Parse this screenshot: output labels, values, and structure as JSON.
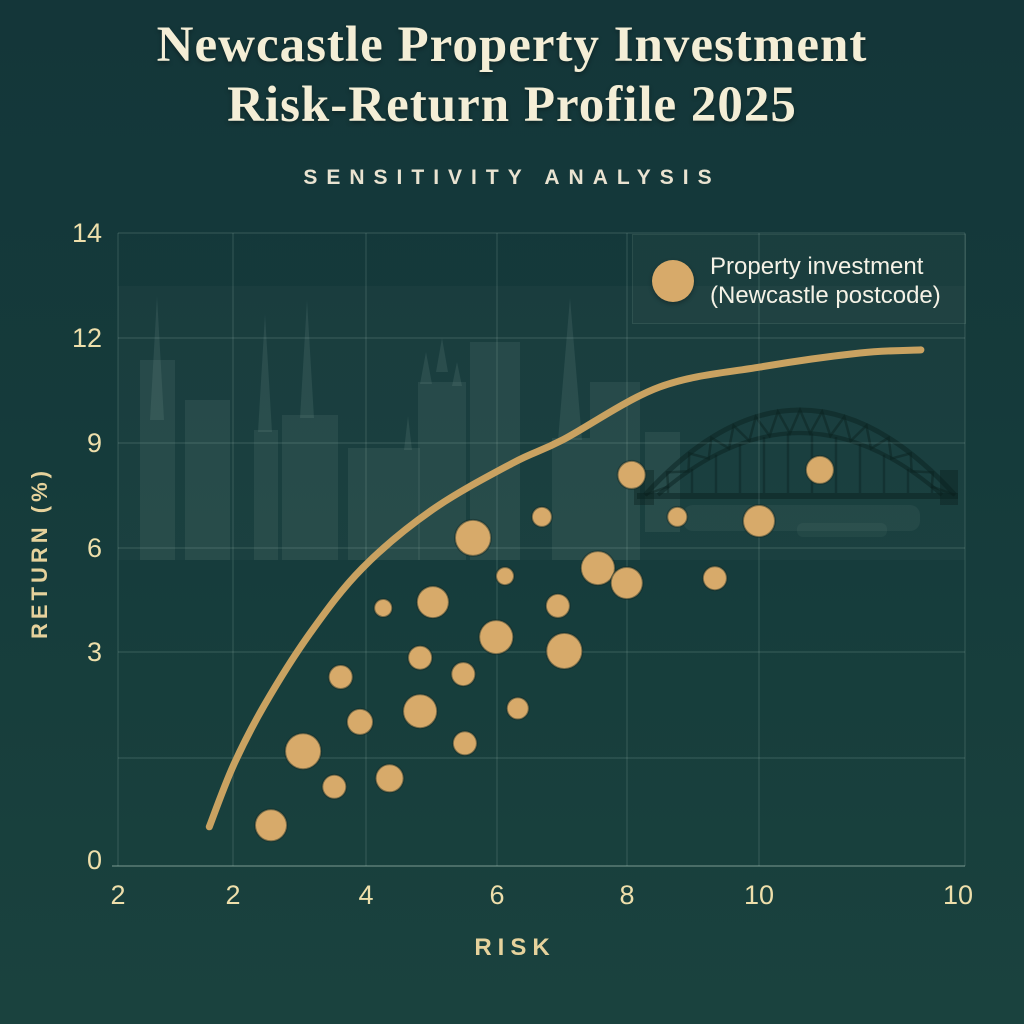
{
  "title": {
    "line1": "Newcastle Property Investment",
    "line2": "Risk-Return Profile 2025"
  },
  "subtitle": "SENSITIVITY ANALYSIS",
  "legend": {
    "label_line1": "Property investment",
    "label_line2": "(Newcastle postcode)"
  },
  "colors": {
    "background": "#15393a",
    "title_text": "#f4eed6",
    "tick_text": "#eedfab",
    "legend_text": "#f5f2e6",
    "bubble": "#d7aa6a",
    "curve": "#c9a261",
    "grid": "#bad6c9",
    "skyline": "#aecbbd",
    "bridge": "#0a211f"
  },
  "chart_data": {
    "type": "scatter",
    "title": "Newcastle Property Investment Risk-Return Profile 2025 — Sensitivity Analysis",
    "xlabel": "RISK",
    "ylabel": "RETURN (%)",
    "x_tick_labels": [
      "2",
      "2",
      "4",
      "6",
      "8",
      "10",
      "10"
    ],
    "y_tick_labels": [
      "14",
      "12",
      "9",
      "6",
      "3",
      "0"
    ],
    "xlim": [
      2,
      12.5
    ],
    "ylim": [
      0,
      14
    ],
    "grid": "on",
    "legend_position": "top-right",
    "series": [
      {
        "name": "Property investment (Newcastle postcode)",
        "points": [
          {
            "risk": 6.43,
            "return": 6.29,
            "r": 18
          },
          {
            "risk": 6.83,
            "return": 5.19,
            "r": 9
          },
          {
            "risk": 7.99,
            "return": 5.42,
            "r": 17
          },
          {
            "risk": 7.29,
            "return": 6.89,
            "r": 10
          },
          {
            "risk": 5.93,
            "return": 4.44,
            "r": 16
          },
          {
            "risk": 5.31,
            "return": 4.27,
            "r": 9
          },
          {
            "risk": 7.49,
            "return": 4.33,
            "r": 12
          },
          {
            "risk": 6.72,
            "return": 3.43,
            "r": 17
          },
          {
            "risk": 7.57,
            "return": 3.03,
            "r": 18
          },
          {
            "risk": 5.77,
            "return": 2.92,
            "r": 12
          },
          {
            "risk": 4.78,
            "return": 2.65,
            "r": 12
          },
          {
            "risk": 6.31,
            "return": 2.69,
            "r": 12
          },
          {
            "risk": 5.77,
            "return": 2.17,
            "r": 17
          },
          {
            "risk": 6.99,
            "return": 2.21,
            "r": 11
          },
          {
            "risk": 5.02,
            "return": 2.02,
            "r": 13
          },
          {
            "risk": 4.31,
            "return": 1.61,
            "r": 18
          },
          {
            "risk": 6.33,
            "return": 1.72,
            "r": 12
          },
          {
            "risk": 5.39,
            "return": 1.23,
            "r": 14
          },
          {
            "risk": 4.7,
            "return": 1.11,
            "r": 12
          },
          {
            "risk": 3.91,
            "return": 0.57,
            "r": 16
          },
          {
            "risk": 8.41,
            "return": 8.09,
            "r": 14
          },
          {
            "risk": 10.76,
            "return": 8.23,
            "r": 14
          },
          {
            "risk": 8.98,
            "return": 6.89,
            "r": 10
          },
          {
            "risk": 10.0,
            "return": 6.77,
            "r": 16
          },
          {
            "risk": 8.35,
            "return": 4.99,
            "r": 16
          },
          {
            "risk": 9.45,
            "return": 5.13,
            "r": 12
          }
        ]
      }
    ],
    "frontier_curve": {
      "name": "efficient-frontier",
      "points": [
        {
          "risk": 3.14,
          "return": 0.55
        },
        {
          "risk": 3.44,
          "return": 1.41
        },
        {
          "risk": 3.83,
          "return": 2.26
        },
        {
          "risk": 4.4,
          "return": 3.55
        },
        {
          "risk": 5.05,
          "return": 5.42
        },
        {
          "risk": 5.92,
          "return": 7.09
        },
        {
          "risk": 6.93,
          "return": 8.43
        },
        {
          "risk": 7.55,
          "return": 9.09
        },
        {
          "risk": 8.76,
          "return": 10.6
        },
        {
          "risk": 10.01,
          "return": 11.17
        },
        {
          "risk": 11.26,
          "return": 11.57
        },
        {
          "risk": 12.02,
          "return": 11.66
        }
      ]
    }
  }
}
